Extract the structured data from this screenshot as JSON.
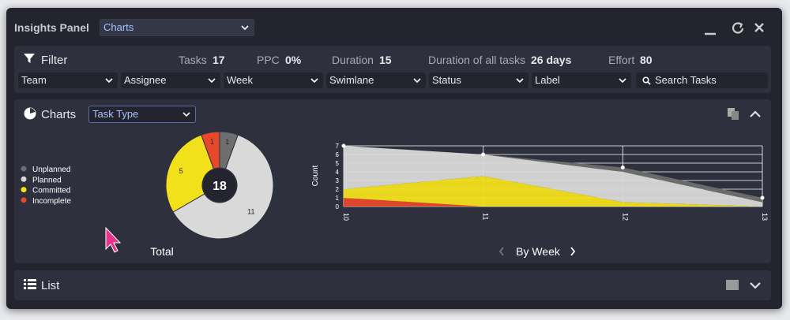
{
  "header": {
    "title": "Insights Panel",
    "view_select": "Charts"
  },
  "filter": {
    "label": "Filter",
    "stats": [
      {
        "label": "Tasks",
        "value": "17"
      },
      {
        "label": "PPC",
        "value": "0%"
      },
      {
        "label": "Duration",
        "value": "15"
      },
      {
        "label": "Duration of all tasks",
        "value": "26 days"
      },
      {
        "label": "Effort",
        "value": "80"
      }
    ],
    "dropdowns": [
      "Team",
      "Assignee",
      "Week",
      "Swimlane",
      "Status",
      "Label"
    ],
    "search_placeholder": "Search Tasks"
  },
  "charts_section": {
    "title": "Charts",
    "select": "Task Type",
    "donut": {
      "total": 18,
      "label": "Total",
      "segments": [
        {
          "name": "Unplanned",
          "color": "#6e6e6e",
          "value": 1
        },
        {
          "name": "Planned",
          "color": "#d9d9d9",
          "value": 11
        },
        {
          "name": "Committed",
          "color": "#f2e01a",
          "value": 5
        },
        {
          "name": "Incomplete",
          "color": "#e8482a",
          "value": 1
        }
      ]
    },
    "area": {
      "y_label": "Count",
      "categories": [
        "10",
        "11",
        "12",
        "13"
      ],
      "ylim": [
        0,
        7
      ],
      "yticks": [
        0,
        1,
        2,
        3,
        4,
        5,
        6,
        7
      ],
      "series": [
        {
          "values": [
            0,
            0,
            0.5,
            0.5
          ]
        },
        {
          "values": [
            5,
            2.5,
            3.5,
            0.5
          ]
        },
        {
          "values": [
            1,
            3.5,
            0.5,
            0
          ]
        },
        {
          "values": [
            1,
            0,
            0,
            0
          ]
        }
      ]
    },
    "nav_label": "By Week"
  },
  "list_section": {
    "title": "List"
  }
}
